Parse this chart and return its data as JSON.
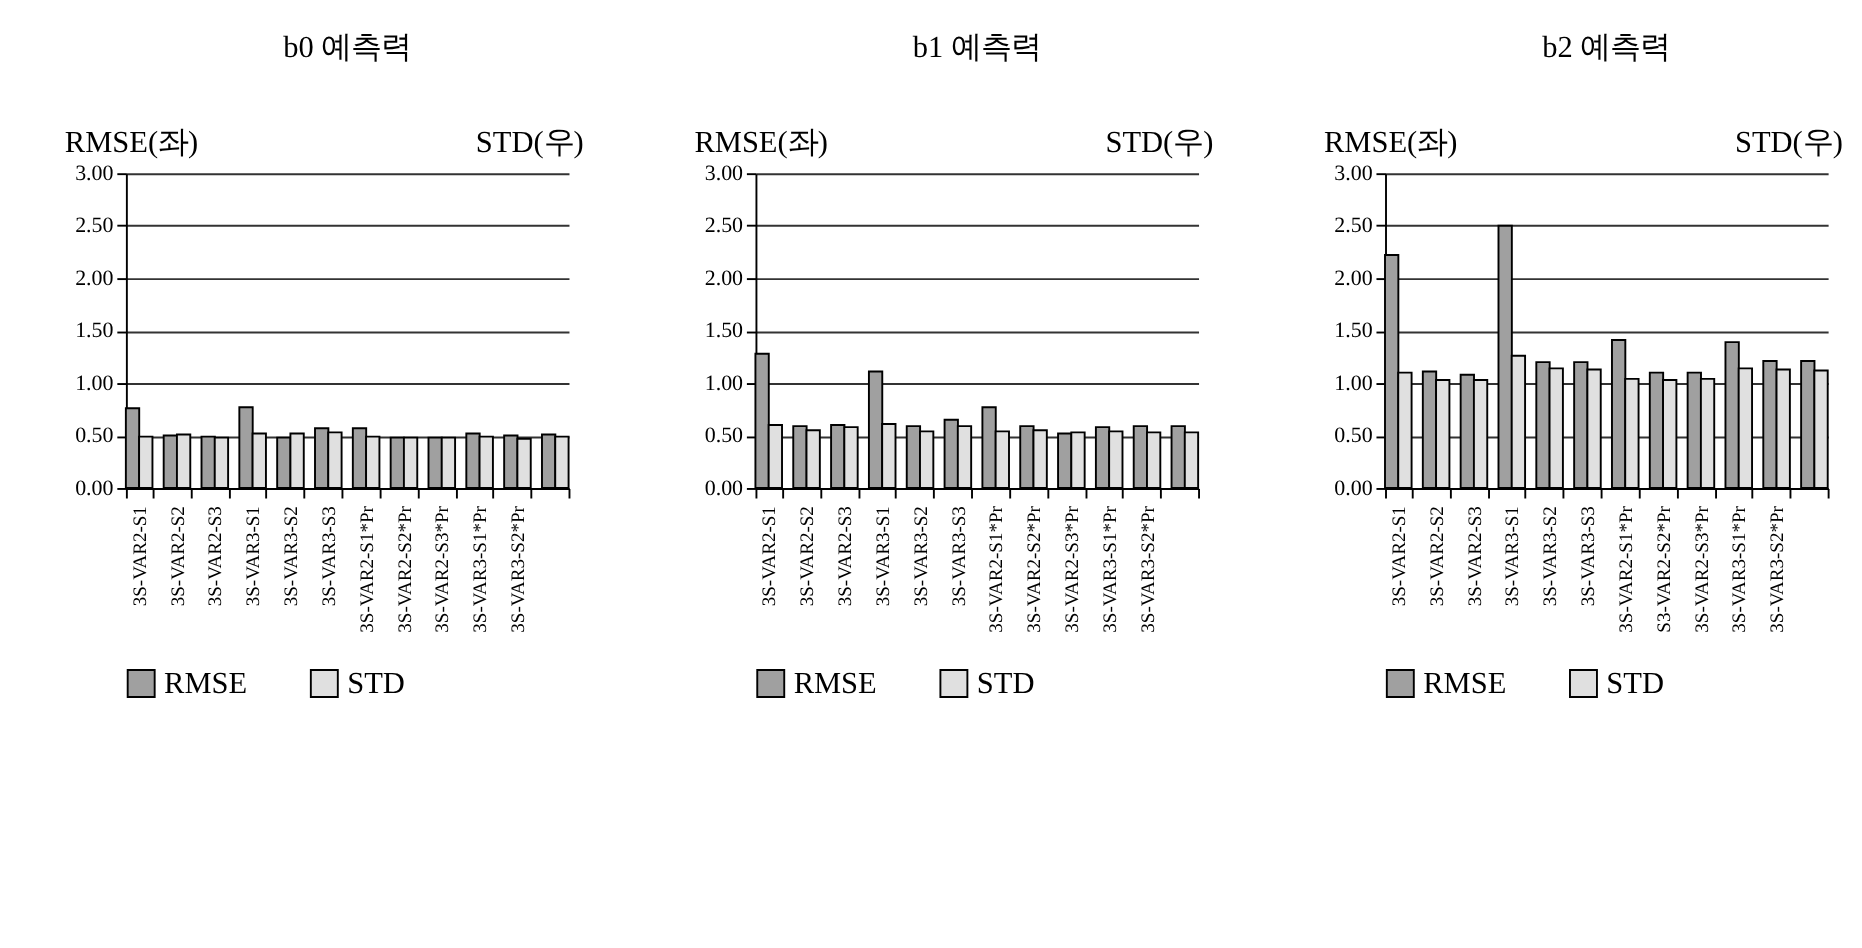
{
  "chart_data": [
    {
      "type": "bar",
      "title": "b0 예측력",
      "categories": [
        "3S-VAR2-S1",
        "3S-VAR2-S2",
        "3S-VAR2-S3",
        "3S-VAR3-S1",
        "3S-VAR3-S2",
        "3S-VAR3-S3",
        "3S-VAR2-S1*Pr",
        "3S-VAR2-S2*Pr",
        "3S-VAR2-S3*Pr",
        "3S-VAR3-S1*Pr",
        "3S-VAR3-S2*Pr",
        null
      ],
      "series": [
        {
          "name": "RMSE",
          "color": "#a0a0a0",
          "values": [
            0.76,
            0.5,
            0.49,
            0.77,
            0.48,
            0.57,
            0.57,
            0.48,
            0.48,
            0.52,
            0.5,
            0.51
          ]
        },
        {
          "name": "STD",
          "color": "#e0e0e0",
          "values": [
            0.49,
            0.51,
            0.48,
            0.52,
            0.52,
            0.53,
            0.49,
            0.48,
            0.48,
            0.49,
            0.47,
            0.49
          ]
        }
      ],
      "annotations": [
        "RMSE(좌)",
        "STD(우)"
      ],
      "ylim": [
        0,
        3
      ],
      "yticks": [
        {
          "value": 0,
          "label": "0.00"
        },
        {
          "value": 0.5,
          "label": "0.50"
        },
        {
          "value": 1,
          "label": "1.00"
        },
        {
          "value": 1.5,
          "label": "1.50"
        },
        {
          "value": 2,
          "label": "2.00"
        },
        {
          "value": 2.5,
          "label": "2.50"
        },
        {
          "value": 3,
          "label": "3.00"
        }
      ],
      "grid": "y",
      "legend": "bottom"
    },
    {
      "type": "bar",
      "title": "b1 예측력",
      "categories": [
        "3S-VAR2-S1",
        "3S-VAR2-S2",
        "3S-VAR2-S3",
        "3S-VAR3-S1",
        "3S-VAR3-S2",
        "3S-VAR3-S3",
        "3S-VAR2-S1*Pr",
        "3S-VAR2-S2*Pr",
        "3S-VAR2-S3*Pr",
        "3S-VAR3-S1*Pr",
        "3S-VAR3-S2*Pr",
        null
      ],
      "series": [
        {
          "name": "RMSE",
          "color": "#a0a0a0",
          "values": [
            1.28,
            0.59,
            0.6,
            1.11,
            0.59,
            0.65,
            0.77,
            0.59,
            0.52,
            0.58,
            0.59,
            0.59
          ]
        },
        {
          "name": "STD",
          "color": "#e0e0e0",
          "values": [
            0.6,
            0.55,
            0.58,
            0.61,
            0.54,
            0.59,
            0.54,
            0.55,
            0.53,
            0.54,
            0.53,
            0.53
          ]
        }
      ],
      "annotations": [
        "RMSE(좌)",
        "STD(우)"
      ],
      "ylim": [
        0,
        3
      ],
      "yticks": [
        {
          "value": 0,
          "label": "0.00"
        },
        {
          "value": 0.5,
          "label": "0.50"
        },
        {
          "value": 1,
          "label": "1.00"
        },
        {
          "value": 1.5,
          "label": "1.50"
        },
        {
          "value": 2,
          "label": "2.00"
        },
        {
          "value": 2.5,
          "label": "2.50"
        },
        {
          "value": 3,
          "label": "3.00"
        }
      ],
      "grid": "y",
      "legend": "bottom"
    },
    {
      "type": "bar",
      "title": "b2 예측력",
      "categories": [
        "3S-VAR2-S1",
        "3S-VAR2-S2",
        "3S-VAR2-S3",
        "3S-VAR3-S1",
        "3S-VAR3-S2",
        "3S-VAR3-S3",
        "3S-VAR2-S1*Pr",
        "S3-VAR2-S2*Pr",
        "3S-VAR2-S3*Pr",
        "3S-VAR3-S1*Pr",
        "3S-VAR3-S2*Pr",
        null
      ],
      "series": [
        {
          "name": "RMSE",
          "color": "#a0a0a0",
          "values": [
            2.22,
            1.11,
            1.08,
            2.5,
            1.2,
            1.2,
            1.41,
            1.1,
            1.1,
            1.39,
            1.21,
            1.21
          ]
        },
        {
          "name": "STD",
          "color": "#e0e0e0",
          "values": [
            1.1,
            1.03,
            1.03,
            1.26,
            1.14,
            1.13,
            1.04,
            1.03,
            1.04,
            1.14,
            1.13,
            1.12
          ]
        }
      ],
      "annotations": [
        "RMSE(좌)",
        "STD(우)"
      ],
      "ylim": [
        0,
        3
      ],
      "yticks": [
        {
          "value": 0,
          "label": "0.00"
        },
        {
          "value": 0.5,
          "label": "0.50"
        },
        {
          "value": 1,
          "label": "1.00"
        },
        {
          "value": 1.5,
          "label": "1.50"
        },
        {
          "value": 2,
          "label": "2.00"
        },
        {
          "value": 2.5,
          "label": "2.50"
        },
        {
          "value": 3,
          "label": "3.00"
        }
      ],
      "grid": "y",
      "legend": "bottom"
    }
  ]
}
